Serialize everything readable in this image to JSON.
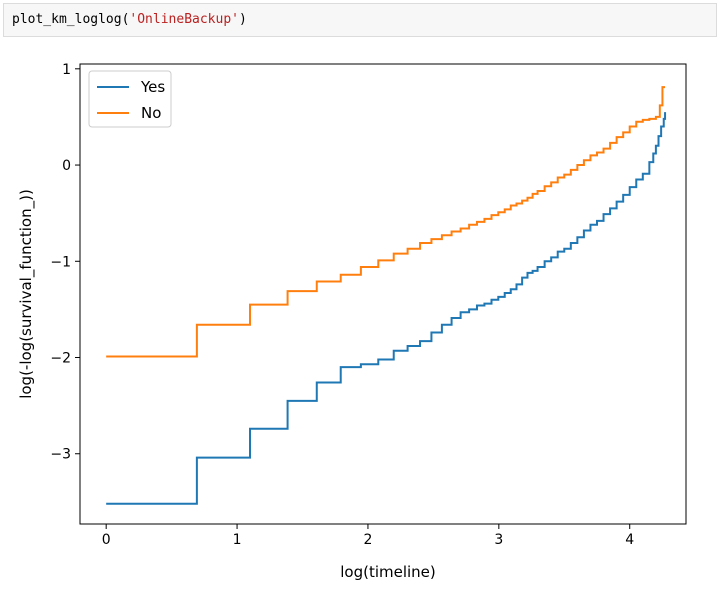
{
  "cell": {
    "code_func": "plot_km_loglog(",
    "code_arg": "'OnlineBackup'",
    "code_close": ")"
  },
  "chart_data": {
    "type": "line",
    "title": "",
    "xlabel": "log(timeline)",
    "ylabel": "log(-log(survival_function_))",
    "xlim": [
      -0.2,
      4.43
    ],
    "ylim": [
      -3.73,
      1.05
    ],
    "xticks": [
      0,
      1,
      2,
      3,
      4
    ],
    "yticks": [
      -3,
      -2,
      -1,
      0,
      1
    ],
    "grid": false,
    "legend": "top-left",
    "series": [
      {
        "name": "Yes",
        "color": "#1f77b4",
        "x": [
          0,
          0.693,
          1.099,
          1.386,
          1.609,
          1.792,
          1.946,
          2.079,
          2.197,
          2.303,
          2.398,
          2.485,
          2.565,
          2.639,
          2.708,
          2.773,
          2.833,
          2.89,
          2.944,
          2.996,
          3.045,
          3.091,
          3.135,
          3.178,
          3.219,
          3.258,
          3.296,
          3.35,
          3.4,
          3.45,
          3.5,
          3.55,
          3.6,
          3.65,
          3.7,
          3.75,
          3.8,
          3.85,
          3.9,
          3.95,
          4.0,
          4.05,
          4.1,
          4.15,
          4.18,
          4.2,
          4.22,
          4.24,
          4.26,
          4.27
        ],
        "y": [
          -3.52,
          -3.04,
          -2.74,
          -2.45,
          -2.26,
          -2.1,
          -2.07,
          -2.02,
          -1.93,
          -1.88,
          -1.83,
          -1.74,
          -1.66,
          -1.59,
          -1.53,
          -1.5,
          -1.46,
          -1.44,
          -1.4,
          -1.37,
          -1.33,
          -1.29,
          -1.24,
          -1.17,
          -1.12,
          -1.1,
          -1.06,
          -1.0,
          -0.96,
          -0.9,
          -0.87,
          -0.81,
          -0.75,
          -0.68,
          -0.62,
          -0.58,
          -0.51,
          -0.45,
          -0.38,
          -0.31,
          -0.23,
          -0.15,
          -0.09,
          0.03,
          0.12,
          0.2,
          0.3,
          0.4,
          0.48,
          0.55
        ]
      },
      {
        "name": "No",
        "color": "#ff7f0e",
        "x": [
          0,
          0.693,
          1.099,
          1.386,
          1.609,
          1.792,
          1.946,
          2.079,
          2.197,
          2.303,
          2.398,
          2.485,
          2.565,
          2.639,
          2.708,
          2.773,
          2.833,
          2.89,
          2.944,
          2.996,
          3.045,
          3.091,
          3.135,
          3.178,
          3.219,
          3.258,
          3.296,
          3.35,
          3.4,
          3.45,
          3.5,
          3.55,
          3.6,
          3.65,
          3.7,
          3.75,
          3.8,
          3.85,
          3.9,
          3.95,
          4.0,
          4.05,
          4.1,
          4.15,
          4.2,
          4.23,
          4.25,
          4.27
        ],
        "y": [
          -1.99,
          -1.66,
          -1.45,
          -1.31,
          -1.21,
          -1.14,
          -1.06,
          -0.99,
          -0.92,
          -0.87,
          -0.81,
          -0.77,
          -0.73,
          -0.69,
          -0.66,
          -0.62,
          -0.59,
          -0.56,
          -0.52,
          -0.49,
          -0.46,
          -0.42,
          -0.4,
          -0.37,
          -0.34,
          -0.3,
          -0.27,
          -0.22,
          -0.18,
          -0.13,
          -0.1,
          -0.05,
          0.0,
          0.05,
          0.1,
          0.13,
          0.17,
          0.23,
          0.29,
          0.34,
          0.4,
          0.45,
          0.47,
          0.48,
          0.5,
          0.62,
          0.81,
          0.81
        ]
      }
    ]
  }
}
